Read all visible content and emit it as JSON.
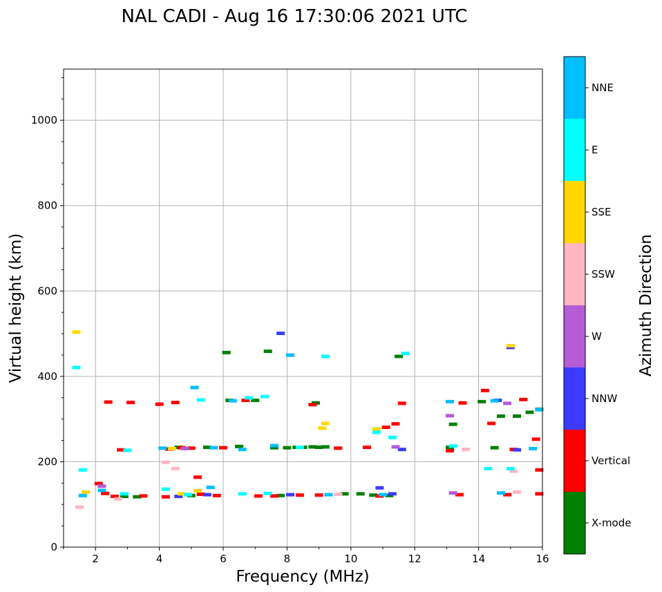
{
  "chart_data": {
    "type": "scatter",
    "title": "NAL CADI - Aug 16 17:30:06 2021 UTC",
    "xlabel": "Frequency (MHz)",
    "ylabel": "Virtual height (km)",
    "xlim": [
      1,
      16
    ],
    "ylim": [
      0,
      1120
    ],
    "xticks": [
      2,
      4,
      6,
      8,
      10,
      12,
      14,
      16
    ],
    "yticks": [
      0,
      200,
      400,
      600,
      800,
      1000
    ],
    "grid": true,
    "colorbar": {
      "label": "Azimuth Direction",
      "categories": [
        {
          "name": "X-mode",
          "color": "#008000"
        },
        {
          "name": "Vertical",
          "color": "#ff0000"
        },
        {
          "name": "NNW",
          "color": "#3b3bff"
        },
        {
          "name": "W",
          "color": "#b55bd6"
        },
        {
          "name": "SSW",
          "color": "#ffb6c1"
        },
        {
          "name": "SSE",
          "color": "#ffd700"
        },
        {
          "name": "E",
          "color": "#00ffff"
        },
        {
          "name": "NNE",
          "color": "#00bfff"
        }
      ]
    },
    "series": [
      {
        "name": "X-mode",
        "values": [
          [
            6.5,
            235
          ],
          [
            7.6,
            232
          ],
          [
            7.8,
            120
          ],
          [
            8.0,
            232
          ],
          [
            8.3,
            233
          ],
          [
            8.5,
            233
          ],
          [
            8.8,
            234
          ],
          [
            9.0,
            233
          ],
          [
            9.2,
            234
          ],
          [
            8.9,
            337
          ],
          [
            9.8,
            124
          ],
          [
            10.3,
            124
          ],
          [
            10.7,
            121
          ],
          [
            11.2,
            120
          ],
          [
            13.1,
            233
          ],
          [
            13.2,
            287
          ],
          [
            14.1,
            340
          ],
          [
            14.5,
            232
          ],
          [
            14.7,
            306
          ],
          [
            15.2,
            306
          ],
          [
            15.6,
            315
          ],
          [
            15.9,
            322
          ],
          [
            6.1,
            455
          ],
          [
            7.4,
            458
          ],
          [
            11.5,
            446
          ],
          [
            2.9,
            118
          ],
          [
            4.6,
            233
          ],
          [
            5.0,
            120
          ],
          [
            5.5,
            233
          ],
          [
            6.2,
            343
          ],
          [
            7.0,
            343
          ],
          [
            3.3,
            117
          ]
        ]
      },
      {
        "name": "Vertical",
        "values": [
          [
            2.1,
            148
          ],
          [
            2.3,
            125
          ],
          [
            2.6,
            118
          ],
          [
            2.8,
            227
          ],
          [
            3.1,
            338
          ],
          [
            3.5,
            119
          ],
          [
            4.0,
            334
          ],
          [
            4.2,
            117
          ],
          [
            4.3,
            229
          ],
          [
            4.7,
            232
          ],
          [
            5.0,
            231
          ],
          [
            5.3,
            123
          ],
          [
            5.8,
            120
          ],
          [
            6.0,
            232
          ],
          [
            6.7,
            343
          ],
          [
            7.1,
            119
          ],
          [
            7.6,
            119
          ],
          [
            8.4,
            121
          ],
          [
            8.8,
            333
          ],
          [
            9.0,
            121
          ],
          [
            9.6,
            231
          ],
          [
            10.5,
            233
          ],
          [
            10.9,
            119
          ],
          [
            11.1,
            280
          ],
          [
            11.4,
            288
          ],
          [
            13.1,
            225
          ],
          [
            13.4,
            122
          ],
          [
            13.5,
            337
          ],
          [
            14.2,
            366
          ],
          [
            14.4,
            289
          ],
          [
            14.9,
            122
          ],
          [
            15.1,
            228
          ],
          [
            15.4,
            345
          ],
          [
            15.9,
            124
          ],
          [
            15.9,
            180
          ],
          [
            15.8,
            252
          ],
          [
            11.6,
            336
          ],
          [
            2.4,
            339
          ],
          [
            4.5,
            338
          ],
          [
            5.2,
            163
          ]
        ]
      },
      {
        "name": "NNW",
        "values": [
          [
            10.9,
            138
          ],
          [
            11.3,
            124
          ],
          [
            11.6,
            228
          ],
          [
            14.6,
            343
          ],
          [
            15.2,
            227
          ],
          [
            15.0,
            467
          ],
          [
            7.8,
            500
          ],
          [
            8.1,
            122
          ],
          [
            4.6,
            118
          ],
          [
            5.5,
            122
          ]
        ]
      },
      {
        "name": "W",
        "values": [
          [
            13.1,
            307
          ],
          [
            13.2,
            126
          ],
          [
            14.9,
            336
          ],
          [
            11.4,
            234
          ],
          [
            2.2,
            142
          ],
          [
            4.8,
            230
          ]
        ]
      },
      {
        "name": "SSW",
        "values": [
          [
            1.5,
            93
          ],
          [
            4.2,
            198
          ],
          [
            4.5,
            183
          ],
          [
            15.2,
            128
          ],
          [
            15.1,
            177
          ],
          [
            9.6,
            123
          ],
          [
            13.6,
            228
          ],
          [
            2.7,
            112
          ]
        ]
      },
      {
        "name": "SSE",
        "values": [
          [
            1.4,
            503
          ],
          [
            1.7,
            128
          ],
          [
            4.7,
            124
          ],
          [
            5.2,
            131
          ],
          [
            9.1,
            278
          ],
          [
            9.2,
            289
          ],
          [
            10.8,
            276
          ],
          [
            15.0,
            471
          ],
          [
            4.4,
            230
          ]
        ]
      },
      {
        "name": "E",
        "values": [
          [
            1.4,
            420
          ],
          [
            1.6,
            180
          ],
          [
            2.9,
            124
          ],
          [
            4.2,
            135
          ],
          [
            4.9,
            122
          ],
          [
            5.3,
            344
          ],
          [
            6.6,
            124
          ],
          [
            6.8,
            349
          ],
          [
            7.3,
            352
          ],
          [
            7.4,
            125
          ],
          [
            8.4,
            233
          ],
          [
            9.2,
            446
          ],
          [
            10.8,
            268
          ],
          [
            11.3,
            256
          ],
          [
            14.3,
            183
          ],
          [
            15.0,
            183
          ],
          [
            13.2,
            236
          ],
          [
            11.7,
            453
          ],
          [
            3.0,
            226
          ]
        ]
      },
      {
        "name": "NNE",
        "values": [
          [
            1.6,
            120
          ],
          [
            2.2,
            132
          ],
          [
            4.1,
            231
          ],
          [
            5.6,
            139
          ],
          [
            5.7,
            232
          ],
          [
            6.3,
            342
          ],
          [
            6.6,
            228
          ],
          [
            7.6,
            237
          ],
          [
            8.1,
            449
          ],
          [
            9.3,
            122
          ],
          [
            11.0,
            122
          ],
          [
            13.1,
            340
          ],
          [
            14.5,
            342
          ],
          [
            14.7,
            126
          ],
          [
            15.7,
            230
          ],
          [
            15.9,
            321
          ],
          [
            5.1,
            373
          ]
        ]
      }
    ]
  }
}
